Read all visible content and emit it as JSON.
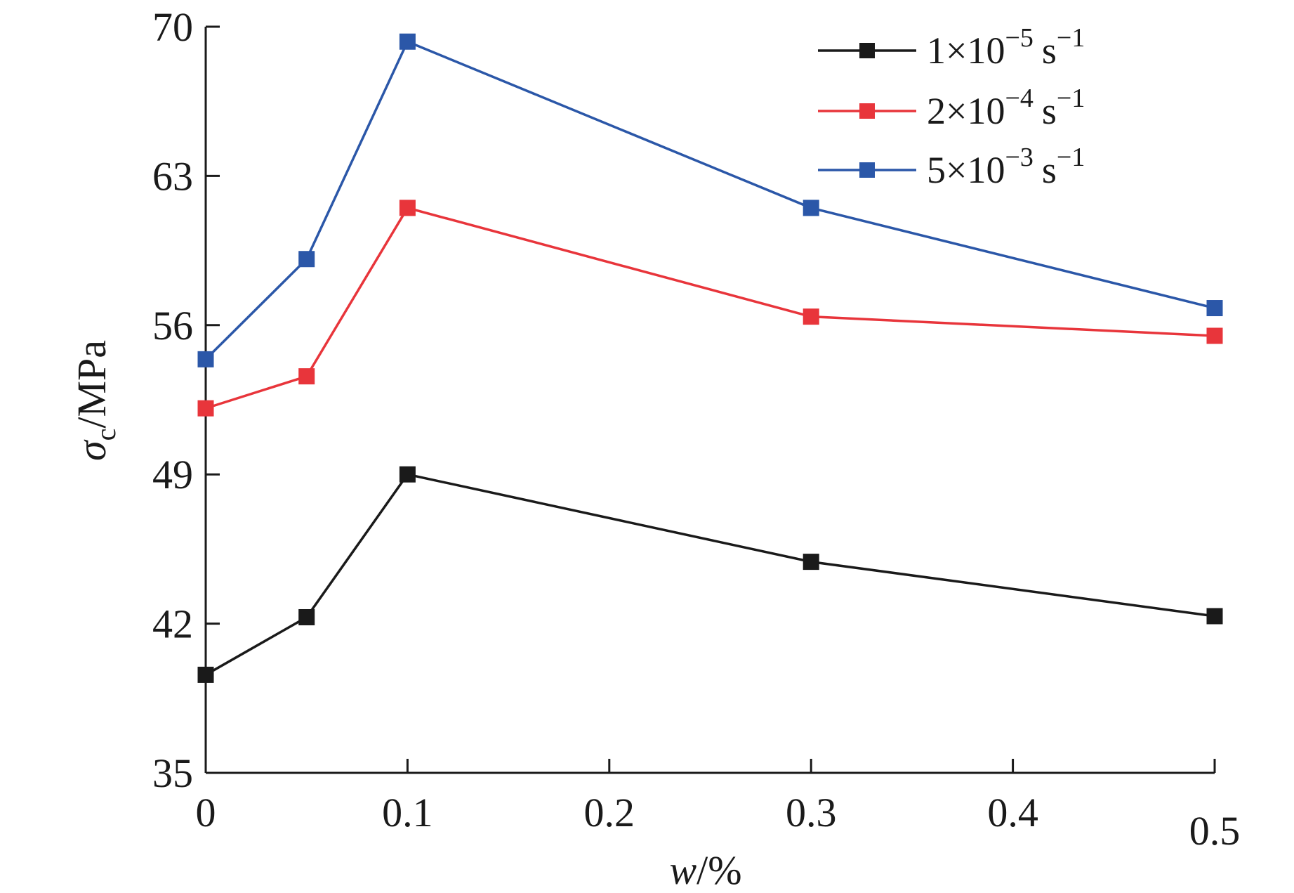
{
  "chart_data": {
    "type": "line",
    "title": "",
    "xlabel": "w/%",
    "ylabel": "σc/MPa",
    "xlim": [
      0,
      0.5
    ],
    "ylim": [
      35,
      70
    ],
    "xticks": [
      0,
      0.1,
      0.2,
      0.3,
      0.4,
      0.5
    ],
    "xtick_labels": [
      "0",
      "0.1",
      "0.2",
      "0.3",
      "0.4",
      "0.5"
    ],
    "yticks": [
      35,
      42,
      49,
      56,
      63,
      70
    ],
    "ytick_labels": [
      "35",
      "42",
      "49",
      "56",
      "63",
      "70"
    ],
    "x": [
      0,
      0.05,
      0.1,
      0.3,
      0.5
    ],
    "legend_position": "top-right",
    "series": [
      {
        "name": "1×10⁻⁵ s⁻¹",
        "label_base": "1×10",
        "label_exp": "−5",
        "label_unit": "s",
        "label_unit_exp": "−1",
        "color": "#1a1a1a",
        "values": [
          39.6,
          42.3,
          49.0,
          44.9,
          42.35
        ]
      },
      {
        "name": "2×10⁻⁴ s⁻¹",
        "label_base": "2×10",
        "label_exp": "−4",
        "label_unit": "s",
        "label_unit_exp": "−1",
        "color": "#e8353b",
        "values": [
          52.1,
          53.6,
          61.5,
          56.4,
          55.5
        ]
      },
      {
        "name": "5×10⁻³ s⁻¹",
        "label_base": "5×10",
        "label_exp": "−3",
        "label_unit": "s",
        "label_unit_exp": "−1",
        "color": "#2b57a8",
        "values": [
          54.4,
          59.1,
          69.3,
          61.5,
          56.8
        ]
      }
    ]
  }
}
